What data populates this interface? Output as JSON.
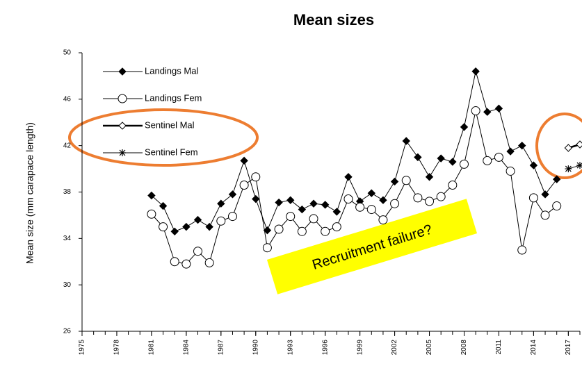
{
  "chart_data": {
    "type": "line",
    "title": "Mean sizes",
    "y_label": "Mean size (mm carapace length)",
    "xlim": [
      1975,
      2018
    ],
    "ylim": [
      26,
      50
    ],
    "xticks": [
      1975,
      1978,
      1981,
      1984,
      1987,
      1990,
      1993,
      1996,
      1999,
      2002,
      2005,
      2008,
      2011,
      2014,
      2017
    ],
    "yticks": [
      26,
      30,
      34,
      38,
      42,
      46,
      50
    ],
    "legend": "upper left",
    "annotations": [
      "Recruitment failure?"
    ],
    "series": [
      {
        "name": "Landings Mal",
        "color": "#000000",
        "marker": "diamond-filled",
        "x": [
          1981,
          1982,
          1983,
          1984,
          1985,
          1986,
          1987,
          1988,
          1989,
          1990,
          1991,
          1992,
          1993,
          1994,
          1995,
          1996,
          1997,
          1998,
          1999,
          2000,
          2001,
          2002,
          2003,
          2004,
          2005,
          2006,
          2007,
          2008,
          2009,
          2010,
          2011,
          2012,
          2013,
          2014,
          2015,
          2016
        ],
        "values": [
          37.7,
          36.8,
          34.6,
          35.0,
          35.6,
          35.0,
          37.0,
          37.8,
          40.7,
          37.4,
          34.7,
          37.1,
          37.3,
          36.5,
          37.0,
          36.9,
          36.3,
          39.3,
          37.2,
          37.9,
          37.3,
          38.9,
          42.4,
          41.0,
          39.3,
          40.9,
          40.6,
          43.6,
          48.4,
          44.9,
          45.2,
          41.5,
          42.0,
          40.3,
          37.8,
          39.1
        ]
      },
      {
        "name": "Landings Fem",
        "color": "#000000",
        "marker": "circle-open",
        "x": [
          1981,
          1982,
          1983,
          1984,
          1985,
          1986,
          1987,
          1988,
          1989,
          1990,
          1991,
          1992,
          1993,
          1994,
          1995,
          1996,
          1997,
          1998,
          1999,
          2000,
          2001,
          2002,
          2003,
          2004,
          2005,
          2006,
          2007,
          2008,
          2009,
          2010,
          2011,
          2012,
          2013,
          2014,
          2015,
          2016
        ],
        "values": [
          36.1,
          35.0,
          32.0,
          31.8,
          32.9,
          31.9,
          35.5,
          35.9,
          38.6,
          39.3,
          33.2,
          34.8,
          35.9,
          34.6,
          35.7,
          34.6,
          35.0,
          37.4,
          36.7,
          36.5,
          35.6,
          37.0,
          39.0,
          37.5,
          37.2,
          37.6,
          38.6,
          40.4,
          45.0,
          40.7,
          41.0,
          39.8,
          33.0,
          37.5,
          36.0,
          36.8
        ]
      },
      {
        "name": "Sentinel Mal",
        "color": "#000000",
        "marker": "diamond-open",
        "x": [
          2017,
          2018
        ],
        "values": [
          41.8,
          42.1
        ]
      },
      {
        "name": "Sentinel Fem",
        "color": "#000000",
        "marker": "asterisk",
        "x": [
          2017,
          2018
        ],
        "values": [
          40.0,
          40.3
        ]
      }
    ]
  }
}
